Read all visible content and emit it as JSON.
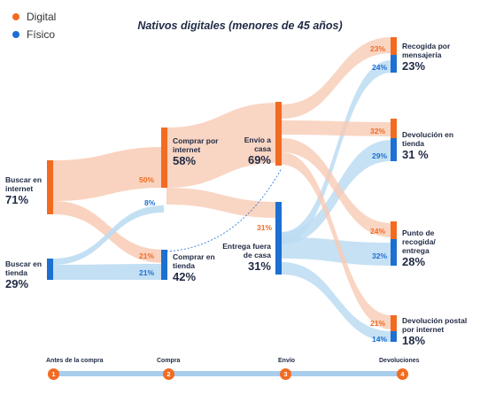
{
  "title": "Nativos digitales (menores de 45 años)",
  "colors": {
    "digital": "#f26b21",
    "fisico": "#1d6fd1",
    "digital_flow": "#f8cbb4",
    "fisico_flow": "#bcdcf2",
    "timeline": "#a9cdec"
  },
  "legend": [
    {
      "key": "digital",
      "label": "Digital"
    },
    {
      "key": "fisico",
      "label": "Físico"
    }
  ],
  "nodes": {
    "buscar_internet": {
      "label": "Buscar en internet",
      "value": "71%"
    },
    "buscar_tienda": {
      "label": "Buscar en tienda",
      "value": "29%"
    },
    "comprar_internet": {
      "label": "Comprar por internet",
      "value": "58%"
    },
    "comprar_tienda": {
      "label": "Comprar en tienda",
      "value": "42%"
    },
    "envio_casa": {
      "label": "Envío a casa",
      "value": "69%"
    },
    "entrega_fuera": {
      "label": "Entrega fuera de casa",
      "value": "31%"
    },
    "recogida_mensajeria": {
      "label": "Recogida por mensajería",
      "value": "23%"
    },
    "devolucion_tienda": {
      "label": "Devolución en tienda",
      "value": "31 %"
    },
    "punto_recogida": {
      "label": "Punto de recogida/ entrega",
      "value": "28%"
    },
    "devolucion_postal": {
      "label": "Devolución postal por internet",
      "value": "18%"
    }
  },
  "flow_labels": {
    "bi_ci": "50%",
    "bi_ct": "21%",
    "bt_ci": "8%",
    "bt_ct": "21%",
    "fuera": "31%",
    "rec_d": "23%",
    "rec_f": "24%",
    "dev_d": "32%",
    "dev_f": "29%",
    "pun_d": "24%",
    "pun_f": "32%",
    "pos_d": "21%",
    "pos_f": "14%"
  },
  "timeline": [
    {
      "num": "1",
      "label": "Antes de la compra"
    },
    {
      "num": "2",
      "label": "Compra"
    },
    {
      "num": "3",
      "label": "Envío"
    },
    {
      "num": "4",
      "label": "Devoluciones"
    }
  ]
}
